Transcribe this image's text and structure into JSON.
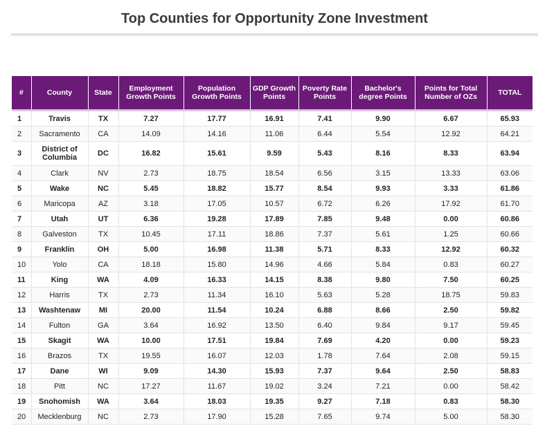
{
  "page": {
    "title": "Top Counties for Opportunity Zone Investment"
  },
  "colors": {
    "header_bg": "#6b1a78",
    "header_text": "#ffffff",
    "title_text": "#3a3a3a",
    "rule": "#e2e2e2"
  },
  "chart_data": {
    "type": "table",
    "title": "Top Counties for Opportunity Zone Investment",
    "columns": [
      "#",
      "County",
      "State",
      "Employment Growth Points",
      "Population Growth Points",
      "GDP Growth Points",
      "Poverty Rate Points",
      "Bachelor's degree Points",
      "Points for Total Number of OZs",
      "TOTAL"
    ],
    "rows": [
      [
        "1",
        "Travis",
        "TX",
        "7.27",
        "17.77",
        "16.91",
        "7.41",
        "9.90",
        "6.67",
        "65.93"
      ],
      [
        "2",
        "Sacramento",
        "CA",
        "14.09",
        "14.16",
        "11.06",
        "6.44",
        "5.54",
        "12.92",
        "64.21"
      ],
      [
        "3",
        "District of Columbia",
        "DC",
        "16.82",
        "15.61",
        "9.59",
        "5.43",
        "8.16",
        "8.33",
        "63.94"
      ],
      [
        "4",
        "Clark",
        "NV",
        "2.73",
        "18.75",
        "18.54",
        "6.56",
        "3.15",
        "13.33",
        "63.06"
      ],
      [
        "5",
        "Wake",
        "NC",
        "5.45",
        "18.82",
        "15.77",
        "8.54",
        "9.93",
        "3.33",
        "61.86"
      ],
      [
        "6",
        "Maricopa",
        "AZ",
        "3.18",
        "17.05",
        "10.57",
        "6.72",
        "6.26",
        "17.92",
        "61.70"
      ],
      [
        "7",
        "Utah",
        "UT",
        "6.36",
        "19.28",
        "17.89",
        "7.85",
        "9.48",
        "0.00",
        "60.86"
      ],
      [
        "8",
        "Galveston",
        "TX",
        "10.45",
        "17.11",
        "18.86",
        "7.37",
        "5.61",
        "1.25",
        "60.66"
      ],
      [
        "9",
        "Franklin",
        "OH",
        "5.00",
        "16.98",
        "11.38",
        "5.71",
        "8.33",
        "12.92",
        "60.32"
      ],
      [
        "10",
        "Yolo",
        "CA",
        "18.18",
        "15.80",
        "14.96",
        "4.66",
        "5.84",
        "0.83",
        "60.27"
      ],
      [
        "11",
        "King",
        "WA",
        "4.09",
        "16.33",
        "14.15",
        "8.38",
        "9.80",
        "7.50",
        "60.25"
      ],
      [
        "12",
        "Harris",
        "TX",
        "2.73",
        "11.34",
        "16.10",
        "5.63",
        "5.28",
        "18.75",
        "59.83"
      ],
      [
        "13",
        "Washtenaw",
        "MI",
        "20.00",
        "11.54",
        "10.24",
        "6.88",
        "8.66",
        "2.50",
        "59.82"
      ],
      [
        "14",
        "Fulton",
        "GA",
        "3.64",
        "16.92",
        "13.50",
        "6.40",
        "9.84",
        "9.17",
        "59.45"
      ],
      [
        "15",
        "Skagit",
        "WA",
        "10.00",
        "17.51",
        "19.84",
        "7.69",
        "4.20",
        "0.00",
        "59.23"
      ],
      [
        "16",
        "Brazos",
        "TX",
        "19.55",
        "16.07",
        "12.03",
        "1.78",
        "7.64",
        "2.08",
        "59.15"
      ],
      [
        "17",
        "Dane",
        "WI",
        "9.09",
        "14.30",
        "15.93",
        "7.37",
        "9.64",
        "2.50",
        "58.83"
      ],
      [
        "18",
        "Pitt",
        "NC",
        "17.27",
        "11.67",
        "19.02",
        "3.24",
        "7.21",
        "0.00",
        "58.42"
      ],
      [
        "19",
        "Snohomish",
        "WA",
        "3.64",
        "18.03",
        "19.35",
        "9.27",
        "7.18",
        "0.83",
        "58.30"
      ],
      [
        "20",
        "Mecklenburg",
        "NC",
        "2.73",
        "17.90",
        "15.28",
        "7.65",
        "9.74",
        "5.00",
        "58.30"
      ]
    ]
  }
}
